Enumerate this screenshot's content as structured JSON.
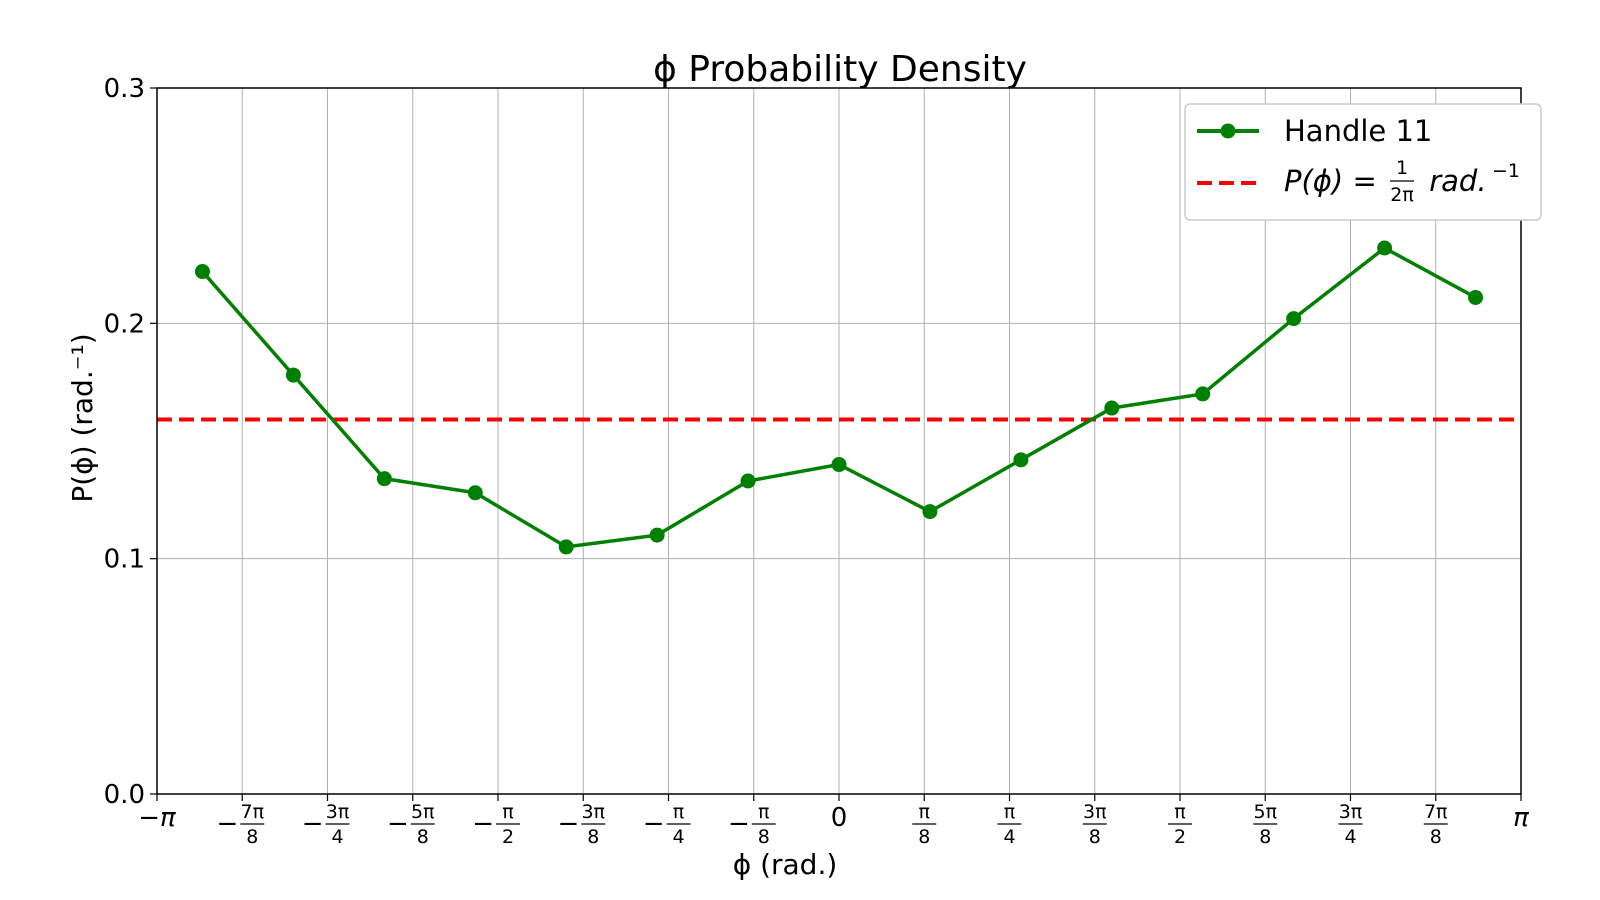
{
  "chart_data": {
    "type": "line",
    "title": "ϕ Probability Density",
    "xlabel": "ϕ  (rad.)",
    "ylabel": "P(ϕ) (rad.⁻¹)",
    "xlim": [
      -3.14159,
      3.14159
    ],
    "ylim": [
      0.0,
      0.3
    ],
    "grid": true,
    "legend_position": "top-right",
    "yticks": [
      {
        "value": 0.0,
        "label": "0.0"
      },
      {
        "value": 0.1,
        "label": "0.1"
      },
      {
        "value": 0.2,
        "label": "0.2"
      },
      {
        "value": 0.3,
        "label": "0.3"
      }
    ],
    "xticks": [
      {
        "value": -3.14159,
        "sign": "−",
        "num": "",
        "den": "",
        "plain": "π"
      },
      {
        "value": -2.74889,
        "sign": "−",
        "num": "7π",
        "den": "8",
        "plain": ""
      },
      {
        "value": -2.35619,
        "sign": "−",
        "num": "3π",
        "den": "4",
        "plain": ""
      },
      {
        "value": -1.9635,
        "sign": "−",
        "num": "5π",
        "den": "8",
        "plain": ""
      },
      {
        "value": -1.5708,
        "sign": "−",
        "num": "π",
        "den": "2",
        "plain": ""
      },
      {
        "value": -1.1781,
        "sign": "−",
        "num": "3π",
        "den": "8",
        "plain": ""
      },
      {
        "value": -0.7854,
        "sign": "−",
        "num": "π",
        "den": "4",
        "plain": ""
      },
      {
        "value": -0.3927,
        "sign": "−",
        "num": "π",
        "den": "8",
        "plain": ""
      },
      {
        "value": 0.0,
        "sign": "",
        "num": "",
        "den": "",
        "plain": "0"
      },
      {
        "value": 0.3927,
        "sign": "",
        "num": "π",
        "den": "8",
        "plain": ""
      },
      {
        "value": 0.7854,
        "sign": "",
        "num": "π",
        "den": "4",
        "plain": ""
      },
      {
        "value": 1.1781,
        "sign": "",
        "num": "3π",
        "den": "8",
        "plain": ""
      },
      {
        "value": 1.5708,
        "sign": "",
        "num": "π",
        "den": "2",
        "plain": ""
      },
      {
        "value": 1.9635,
        "sign": "",
        "num": "5π",
        "den": "8",
        "plain": ""
      },
      {
        "value": 2.35619,
        "sign": "",
        "num": "3π",
        "den": "4",
        "plain": ""
      },
      {
        "value": 2.74889,
        "sign": "",
        "num": "7π",
        "den": "8",
        "plain": ""
      },
      {
        "value": 3.14159,
        "sign": "",
        "num": "",
        "den": "",
        "plain": "π"
      }
    ],
    "series": [
      {
        "name": "Handle 11",
        "color": "#008000",
        "style": "solid-line-with-markers",
        "x": [
          -2.9322,
          -2.5133,
          -2.0944,
          -1.6755,
          -1.2566,
          -0.8378,
          -0.4189,
          0.0,
          0.4189,
          0.8378,
          1.2566,
          1.6755,
          2.0944,
          2.5133,
          2.9322
        ],
        "y": [
          0.222,
          0.178,
          0.134,
          0.128,
          0.105,
          0.11,
          0.133,
          0.14,
          0.12,
          0.142,
          0.164,
          0.17,
          0.202,
          0.232,
          0.211
        ]
      }
    ],
    "reference_line": {
      "name_prefix": "P(ϕ) = ",
      "frac_num": "1",
      "frac_den": "2π",
      "unit": " rad.",
      "unit_exp": "−1",
      "value": 0.159155,
      "color": "#ff0000",
      "style": "dashed"
    }
  }
}
